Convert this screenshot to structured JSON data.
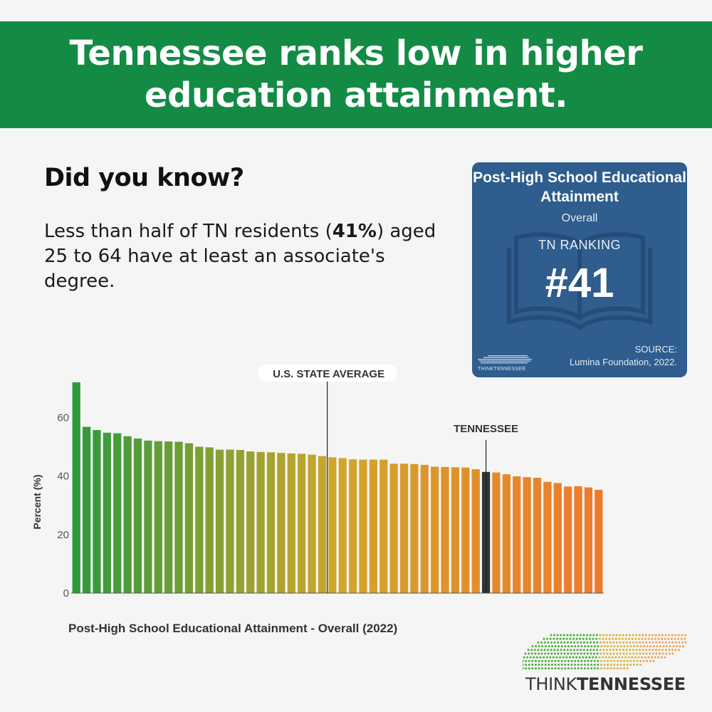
{
  "header": {
    "title": "Tennessee ranks low in higher education attainment."
  },
  "intro": {
    "heading": "Did you know?",
    "text_before": "Less than half of TN residents (",
    "text_bold": "41%",
    "text_after": ") aged 25 to 64 have at least an associate's degree."
  },
  "card": {
    "title": "Post-High School Educational Attainment",
    "subtitle": "Overall",
    "rank_label": "TN RANKING",
    "rank": "#41",
    "source_label": "SOURCE:",
    "source": "Lumina Foundation, 2022.",
    "logo_text": "THINKTENNESSEE",
    "background": "#2e5d8e"
  },
  "brand": {
    "part1": "THINK",
    "part2": "TENNESSEE"
  },
  "colors": {
    "banner": "#138b45",
    "green": "#2e9a3c",
    "yellow": "#d1a62c",
    "orange": "#ee7a2c",
    "tennessee_bar": "#333333"
  },
  "chart_data": {
    "type": "bar",
    "title": "Post-High School Educational Attainment - Overall (2022)",
    "ylabel": "Percent (%)",
    "ylim": [
      0,
      72
    ],
    "yticks": [
      0,
      20,
      40,
      60
    ],
    "values": [
      72.0,
      56.8,
      55.7,
      54.8,
      54.6,
      53.6,
      52.8,
      52.1,
      51.9,
      51.8,
      51.7,
      51.2,
      50.0,
      49.8,
      49.0,
      49.0,
      48.9,
      48.4,
      48.2,
      48.1,
      47.9,
      47.7,
      47.6,
      47.3,
      46.8,
      46.4,
      46.1,
      45.7,
      45.6,
      45.6,
      45.6,
      44.2,
      44.2,
      44.1,
      43.8,
      43.2,
      43.1,
      43.0,
      42.9,
      42.3,
      41.4,
      41.2,
      40.6,
      39.9,
      39.6,
      39.4,
      38.0,
      37.6,
      36.4,
      36.5,
      36.1,
      35.3
    ],
    "annotations": [
      {
        "label": "U.S. STATE AVERAGE",
        "bar_index": 25
      },
      {
        "label": "TENNESSEE",
        "bar_index": 40
      }
    ],
    "highlight_index": 40,
    "grid": false
  }
}
